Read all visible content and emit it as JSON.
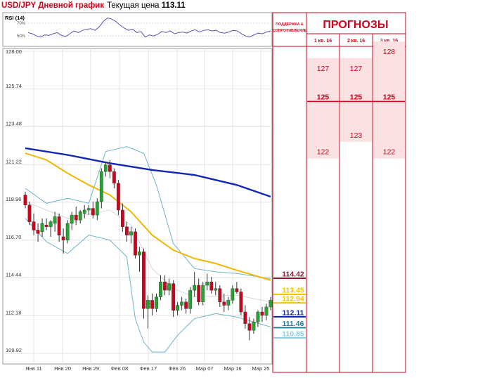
{
  "header": {
    "title": "USD/JPY Дневной график",
    "price_label": "Текущая цена",
    "price_value": "113.11"
  },
  "panel": {
    "support_header": "ПОДДЕРЖКА & СОПРОТИВЛЕНИЕ",
    "forecast_title": "ПРОГНОЗЫ",
    "forecast_dates": [
      "1 кв. 16",
      "2 кв. 16",
      "3 кв. 16"
    ],
    "forecasts": [
      {
        "values": [
          127,
          125,
          122
        ]
      },
      {
        "values": [
          127,
          125,
          123
        ]
      },
      {
        "values": [
          128,
          125,
          122
        ]
      }
    ]
  },
  "levels": [
    {
      "value": "114.42",
      "color": "#8b1a2e",
      "kind": "resistance"
    },
    {
      "value": "113.45",
      "color": "#f5c200",
      "kind": "ma"
    },
    {
      "value": "112.94",
      "color": "#f5c200",
      "kind": "ma"
    },
    {
      "value": "112.11",
      "color": "#0a23a8",
      "kind": "ma"
    },
    {
      "value": "111.46",
      "color": "#1b7f9a",
      "kind": "support"
    },
    {
      "value": "110.85",
      "color": "#8ec8de",
      "kind": "support"
    }
  ],
  "colors": {
    "accent_red": "#d0021b",
    "bull": "#22a62e",
    "bear": "#d0021b",
    "ma_slow": "#1126b0",
    "ma_fast": "#f2b705",
    "bollinger": "#6fb3c9",
    "rsi": "#5b55b5",
    "forecast_fill": "#fbe1e1"
  },
  "chart_data": {
    "type": "candlestick",
    "yticks": [
      "128.00",
      "125.74",
      "123.48",
      "121.22",
      "118.96",
      "116.70",
      "114.44",
      "112.18",
      "109.92"
    ],
    "ylim": [
      109.92,
      128.0
    ],
    "xticks": [
      "Янв 11",
      "Янв 20",
      "Янв 29",
      "Фев 08",
      "Фев 17",
      "Фев 26",
      "Мар 07",
      "Мар 16",
      "Мар 25"
    ],
    "grid": true,
    "ohlc": [
      [
        119.4,
        119.6,
        118.6,
        118.8
      ],
      [
        118.8,
        119.0,
        117.6,
        117.8
      ],
      [
        117.8,
        118.3,
        117.0,
        117.3
      ],
      [
        117.3,
        117.7,
        116.6,
        117.1
      ],
      [
        117.2,
        118.0,
        116.9,
        117.7
      ],
      [
        117.6,
        118.0,
        117.3,
        117.5
      ],
      [
        117.5,
        117.9,
        116.9,
        117.8
      ],
      [
        117.7,
        118.4,
        117.2,
        118.1
      ],
      [
        118.1,
        118.3,
        116.6,
        117.0
      ],
      [
        116.9,
        117.4,
        115.9,
        116.7
      ],
      [
        116.7,
        117.9,
        116.5,
        117.7
      ],
      [
        117.7,
        118.4,
        117.3,
        118.2
      ],
      [
        118.2,
        118.7,
        117.6,
        117.9
      ],
      [
        117.9,
        118.5,
        117.7,
        118.4
      ],
      [
        118.3,
        118.8,
        118.0,
        118.5
      ],
      [
        118.5,
        118.8,
        118.2,
        118.6
      ],
      [
        118.6,
        119.0,
        118.0,
        118.2
      ],
      [
        118.2,
        119.2,
        117.9,
        119.0
      ],
      [
        119.0,
        121.0,
        118.6,
        120.8
      ],
      [
        120.8,
        121.4,
        120.5,
        121.2
      ],
      [
        121.2,
        121.5,
        120.4,
        120.8
      ],
      [
        120.8,
        121.0,
        119.8,
        120.1
      ],
      [
        120.1,
        120.3,
        118.2,
        118.5
      ],
      [
        118.5,
        118.9,
        117.2,
        117.5
      ],
      [
        117.5,
        117.8,
        116.6,
        117.0
      ],
      [
        117.0,
        117.5,
        116.5,
        117.2
      ],
      [
        117.2,
        117.4,
        115.6,
        115.8
      ],
      [
        115.8,
        116.3,
        114.8,
        116.0
      ],
      [
        116.0,
        116.2,
        112.0,
        112.6
      ],
      [
        112.6,
        113.4,
        111.4,
        113.1
      ],
      [
        113.1,
        113.5,
        112.2,
        112.6
      ],
      [
        112.6,
        113.5,
        112.4,
        113.3
      ],
      [
        113.3,
        114.6,
        113.1,
        114.2
      ],
      [
        114.2,
        114.6,
        113.4,
        113.7
      ],
      [
        113.7,
        114.4,
        113.4,
        114.1
      ],
      [
        114.1,
        114.3,
        112.1,
        112.5
      ],
      [
        112.5,
        113.0,
        112.2,
        112.8
      ],
      [
        112.8,
        113.3,
        112.5,
        113.0
      ],
      [
        113.0,
        113.2,
        112.3,
        112.6
      ],
      [
        112.6,
        113.9,
        112.3,
        113.7
      ],
      [
        113.7,
        114.8,
        113.3,
        114.0
      ],
      [
        114.0,
        114.4,
        112.8,
        113.0
      ],
      [
        113.0,
        114.2,
        112.8,
        114.0
      ],
      [
        114.0,
        114.7,
        113.7,
        114.2
      ],
      [
        114.2,
        114.5,
        113.5,
        113.7
      ],
      [
        113.7,
        114.2,
        113.4,
        113.8
      ],
      [
        113.8,
        114.0,
        112.7,
        113.0
      ],
      [
        113.0,
        113.5,
        112.4,
        112.8
      ],
      [
        112.8,
        113.3,
        112.5,
        113.1
      ],
      [
        113.1,
        114.0,
        112.9,
        113.8
      ],
      [
        113.8,
        114.2,
        113.5,
        113.6
      ],
      [
        113.6,
        113.8,
        112.2,
        112.4
      ],
      [
        112.4,
        112.8,
        111.4,
        111.7
      ],
      [
        111.7,
        112.1,
        110.7,
        111.3
      ],
      [
        111.3,
        112.0,
        111.1,
        111.8
      ],
      [
        111.8,
        112.5,
        111.5,
        112.4
      ],
      [
        112.4,
        112.7,
        111.8,
        112.2
      ],
      [
        112.2,
        112.9,
        111.9,
        112.7
      ],
      [
        112.7,
        113.3,
        112.5,
        113.1
      ]
    ],
    "ma_slow": [
      [
        0,
        122.2
      ],
      [
        10,
        121.8
      ],
      [
        20,
        121.3
      ],
      [
        30,
        120.9
      ],
      [
        40,
        120.6
      ],
      [
        50,
        120.0
      ],
      [
        58,
        119.3
      ]
    ],
    "ma_fast": [
      [
        0,
        121.9
      ],
      [
        5,
        121.5
      ],
      [
        10,
        120.7
      ],
      [
        15,
        120.0
      ],
      [
        20,
        119.4
      ],
      [
        25,
        118.4
      ],
      [
        30,
        117.0
      ],
      [
        35,
        116.1
      ],
      [
        40,
        115.6
      ],
      [
        45,
        115.3
      ],
      [
        50,
        114.9
      ],
      [
        58,
        114.3
      ]
    ],
    "bb_upper": [
      [
        0,
        119.8
      ],
      [
        5,
        118.9
      ],
      [
        10,
        119.2
      ],
      [
        15,
        118.9
      ],
      [
        19,
        122.0
      ],
      [
        24,
        122.3
      ],
      [
        28,
        121.9
      ],
      [
        31,
        120.0
      ],
      [
        35,
        116.5
      ],
      [
        40,
        115.0
      ],
      [
        45,
        114.8
      ],
      [
        50,
        114.7
      ],
      [
        58,
        114.4
      ]
    ],
    "bb_lower": [
      [
        0,
        118.0
      ],
      [
        5,
        116.6
      ],
      [
        10,
        115.9
      ],
      [
        15,
        117.0
      ],
      [
        20,
        116.7
      ],
      [
        24,
        115.7
      ],
      [
        26,
        112.0
      ],
      [
        28,
        110.6
      ],
      [
        30,
        110.0
      ],
      [
        33,
        110.0
      ],
      [
        36,
        111.0
      ],
      [
        40,
        112.0
      ],
      [
        45,
        112.3
      ],
      [
        50,
        112.1
      ],
      [
        58,
        111.5
      ]
    ],
    "bb_mid": [
      [
        0,
        119.0
      ],
      [
        10,
        118.0
      ],
      [
        20,
        118.5
      ],
      [
        25,
        117.6
      ],
      [
        30,
        115.0
      ],
      [
        35,
        113.8
      ],
      [
        40,
        113.3
      ],
      [
        50,
        113.4
      ],
      [
        58,
        113.0
      ]
    ],
    "rsi": {
      "label": "RSI (14)",
      "ticks": [
        "70%",
        "50%"
      ],
      "ylim": [
        0,
        100
      ],
      "values": [
        52,
        50,
        46,
        44,
        48,
        47,
        50,
        52,
        47,
        45,
        50,
        55,
        52,
        56,
        58,
        59,
        56,
        62,
        72,
        78,
        76,
        72,
        65,
        60,
        56,
        58,
        52,
        54,
        44,
        48,
        46,
        49,
        54,
        52,
        55,
        50,
        52,
        53,
        51,
        55,
        57,
        53,
        56,
        57,
        55,
        56,
        52,
        51,
        53,
        56,
        55,
        50,
        46,
        44,
        48,
        51,
        50,
        53,
        55
      ]
    }
  }
}
